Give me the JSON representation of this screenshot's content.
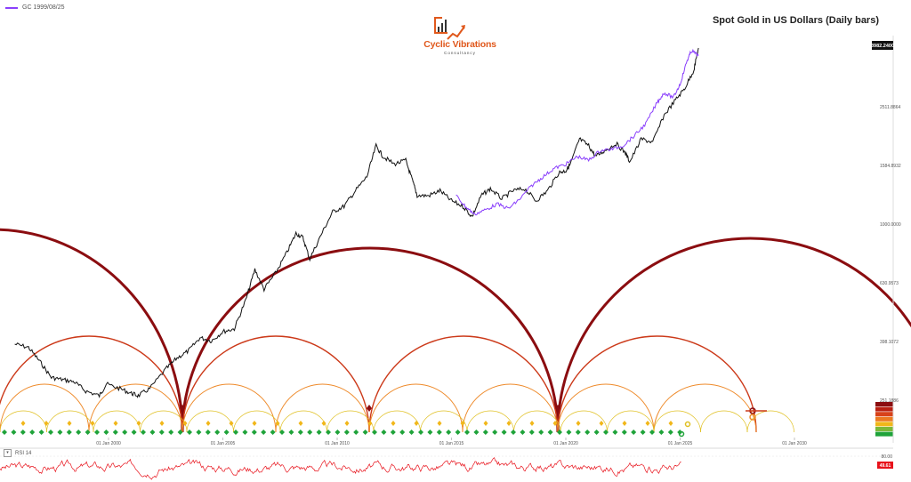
{
  "legend": {
    "label": "GC 1999/08/25",
    "color": "#8a3ffc"
  },
  "logo": {
    "name": "Cyclic Vibrations",
    "subtitle": "Consultancy",
    "color": "#e0581c"
  },
  "rsi": {
    "label": "RSI 14"
  },
  "colors": {
    "price": "#111111",
    "overlay": "#8a3ffc",
    "rsi": "#e8121b",
    "cycle_large": "#8b0d10",
    "cycle_mid": "#cc3a1a",
    "cycle_small": "#ee8a2a",
    "cycle_tiny": "#e0c022",
    "marker_green": "#1fa33a"
  },
  "chart_data": [
    {
      "type": "line",
      "title": "Spot Gold in US Dollars (Daily bars)",
      "y_scale": "log",
      "y_tick_labels": [
        "251.1886",
        "398.1072",
        "630.9573",
        "1000.0000",
        "1584.8932",
        "2511.8864"
      ],
      "y_ticks": [
        251.1886,
        398.1072,
        630.9573,
        1000,
        1584.8932,
        2511.8864
      ],
      "last_price_label": "3982.2400",
      "x_tick_labels": [
        "01 Jan 2000",
        "01 Jan 2005",
        "01 Jan 2010",
        "01 Jan 2015",
        "01 Jan 2020",
        "01 Jan 2025",
        "01 Jan 2030"
      ],
      "x_ticks": [
        2000,
        2005,
        2010,
        2015,
        2020,
        2025,
        2030
      ],
      "series": [
        {
          "x": [
            1995.9,
            1996.5,
            1997.0,
            1997.5,
            1998.0,
            1998.5,
            1999.0,
            1999.6,
            1999.9,
            2000.5,
            2001.0,
            2001.3,
            2001.8,
            2002.5,
            2003.0,
            2003.5,
            2004.0,
            2004.5,
            2005.0,
            2005.5,
            2006.0,
            2006.4,
            2006.8,
            2007.3,
            2007.8,
            2008.2,
            2008.5,
            2008.8,
            2009.3,
            2009.8,
            2010.3,
            2010.8,
            2011.3,
            2011.7,
            2012.0,
            2012.5,
            2013.0,
            2013.3,
            2013.5,
            2014.0,
            2014.5,
            2015.0,
            2015.5,
            2015.9,
            2016.3,
            2016.7,
            2017.2,
            2017.7,
            2018.2,
            2018.7,
            2019.2,
            2019.7,
            2020.0,
            2020.2,
            2020.6,
            2021.0,
            2021.3,
            2021.7,
            2022.2,
            2022.6,
            2022.8,
            2023.3,
            2023.8,
            2024.3,
            2024.8,
            2025.2,
            2025.6,
            2025.8
          ],
          "values": [
            390,
            380,
            340,
            300,
            295,
            290,
            270,
            260,
            285,
            275,
            265,
            260,
            275,
            320,
            350,
            370,
            410,
            400,
            430,
            440,
            550,
            700,
            600,
            680,
            800,
            930,
            900,
            760,
            920,
            1100,
            1150,
            1300,
            1450,
            1850,
            1700,
            1600,
            1650,
            1400,
            1250,
            1250,
            1300,
            1200,
            1150,
            1060,
            1250,
            1320,
            1220,
            1300,
            1320,
            1200,
            1300,
            1500,
            1520,
            1600,
            1950,
            1850,
            1700,
            1780,
            1880,
            1750,
            1630,
            1950,
            1900,
            2350,
            2650,
            2900,
            3350,
            3982
          ]
        },
        {
          "name": "GC 1999/08/25",
          "x": [
            2015.2,
            2015.6,
            2016.0,
            2016.5,
            2017.0,
            2017.5,
            2018.0,
            2018.5,
            2019.0,
            2019.5,
            2020.0,
            2020.5,
            2021.0,
            2021.5,
            2022.0,
            2022.5,
            2023.0,
            2023.5,
            2024.0,
            2024.3,
            2024.7,
            2025.0,
            2025.3,
            2025.5,
            2025.8
          ],
          "values": [
            1250,
            1150,
            1080,
            1120,
            1170,
            1130,
            1220,
            1350,
            1450,
            1550,
            1600,
            1700,
            1650,
            1780,
            1800,
            1850,
            2000,
            2200,
            2600,
            2800,
            2700,
            3000,
            3600,
            3900,
            3750
          ]
        }
      ]
    },
    {
      "type": "line",
      "name": "RSI 14",
      "y_tick_labels": [
        "80.00"
      ],
      "last_value_label": "49.61",
      "ylim": [
        20,
        85
      ]
    }
  ]
}
